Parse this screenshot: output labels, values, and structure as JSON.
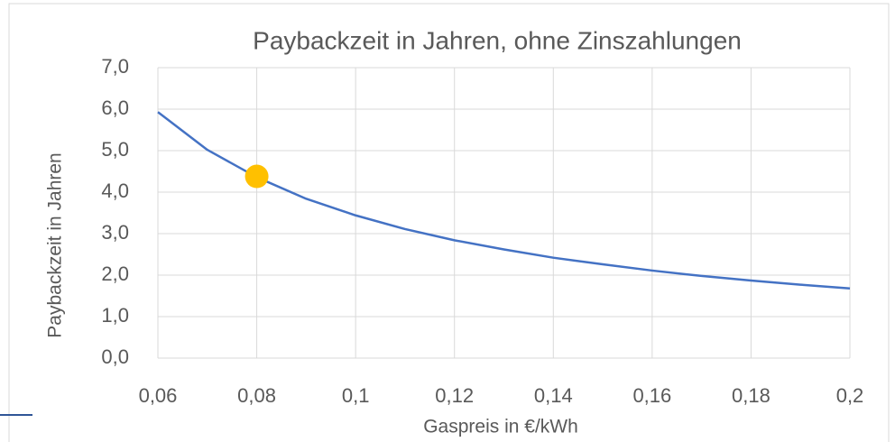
{
  "chart_data": {
    "type": "line",
    "title": "Paybackzeit in Jahren, ohne Zinszahlungen",
    "x_label": "Gaspreis in €/kWh",
    "y_label": "Paybackzeit in Jahren",
    "x": [
      0.06,
      0.07,
      0.08,
      0.09,
      0.1,
      0.11,
      0.12,
      0.13,
      0.14,
      0.15,
      0.16,
      0.17,
      0.18,
      0.19,
      0.2
    ],
    "series": [
      {
        "color": "#4472c4",
        "values": [
          5.93,
          5.02,
          4.36,
          3.84,
          3.44,
          3.11,
          2.84,
          2.62,
          2.42,
          2.26,
          2.11,
          1.98,
          1.87,
          1.77,
          1.68
        ]
      },
      {
        "color": "#ffc000",
        "style": "marker",
        "x": [
          0.08
        ],
        "values": [
          4.38
        ]
      }
    ],
    "xlim": [
      0.06,
      0.2
    ],
    "ylim": [
      0,
      7
    ],
    "xticks": [
      {
        "value": 0.06,
        "label": "0,06"
      },
      {
        "value": 0.08,
        "label": "0,08"
      },
      {
        "value": 0.1,
        "label": "0,1"
      },
      {
        "value": 0.12,
        "label": "0,12"
      },
      {
        "value": 0.14,
        "label": "0,14"
      },
      {
        "value": 0.16,
        "label": "0,16"
      },
      {
        "value": 0.18,
        "label": "0,18"
      },
      {
        "value": 0.2,
        "label": "0,2"
      }
    ],
    "yticks": [
      {
        "value": 0,
        "label": "0,0"
      },
      {
        "value": 1,
        "label": "1,0"
      },
      {
        "value": 2,
        "label": "2,0"
      },
      {
        "value": 3,
        "label": "3,0"
      },
      {
        "value": 4,
        "label": "4,0"
      },
      {
        "value": 5,
        "label": "5,0"
      },
      {
        "value": 6,
        "label": "6,0"
      },
      {
        "value": 7,
        "label": "7,0"
      }
    ],
    "grid": true
  }
}
